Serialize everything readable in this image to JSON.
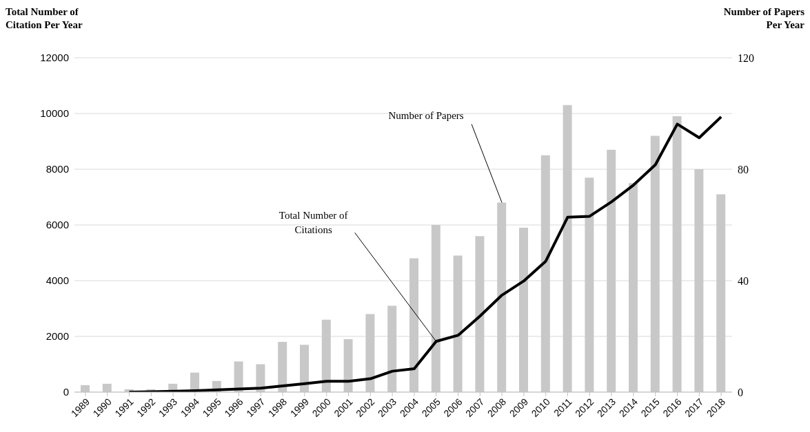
{
  "chart_data": {
    "type": "bar",
    "ylabel": "Total Number of Citation Per Year",
    "y2label": "Number of Papers Per Year",
    "categories": [
      "1989",
      "1990",
      "1991",
      "1992",
      "1993",
      "1994",
      "1995",
      "1996",
      "1997",
      "1998",
      "1999",
      "2000",
      "2001",
      "2002",
      "2003",
      "2004",
      "2005",
      "2006",
      "2007",
      "2008",
      "2009",
      "2010",
      "2011",
      "2012",
      "2013",
      "2014",
      "2015",
      "2016",
      "2017",
      "2018"
    ],
    "series": [
      {
        "axis": "y2",
        "color": "#c8c8c8",
        "values": [
          2.5,
          3,
          1,
          1,
          3,
          7,
          4,
          11,
          10,
          18,
          17,
          26,
          19,
          28,
          31,
          48,
          60,
          49,
          56,
          68,
          59,
          85,
          103,
          77,
          87,
          75,
          92,
          99,
          80,
          71
        ]
      },
      {
        "type": "line",
        "color": "#000000",
        "values": [
          null,
          null,
          0,
          10,
          30,
          50,
          80,
          110,
          140,
          220,
          300,
          390,
          390,
          480,
          750,
          840,
          1820,
          2040,
          2730,
          3480,
          3990,
          4700,
          6280,
          6310,
          6830,
          7430,
          8160,
          9620,
          9130,
          9880
        ]
      }
    ],
    "ylim": [
      0,
      12000
    ],
    "yticks": [
      0,
      2000,
      4000,
      6000,
      8000,
      10000,
      12000
    ],
    "y2lim": [
      0,
      120
    ],
    "y2ticks": [
      0,
      40,
      80,
      120
    ],
    "grid": "y",
    "annotations": [
      {
        "text": "Total Number of Citations",
        "x": "2005",
        "y": 1820
      },
      {
        "text": "Number of Papers",
        "x": "2008",
        "y": 6800
      }
    ]
  }
}
